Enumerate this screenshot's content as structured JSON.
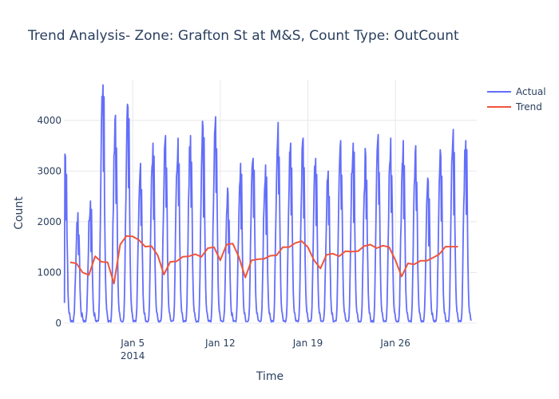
{
  "chart_data": {
    "type": "line",
    "title": "Trend Analysis- Zone: Grafton St at M&S, Count Type: OutCount",
    "xlabel": "Time",
    "ylabel": "Count",
    "x_range": [
      "2013-12-30T12:00",
      "2014-02-01T12:00"
    ],
    "ylim": [
      0,
      4800
    ],
    "y_ticks": [
      {
        "value": 0,
        "label": "0"
      },
      {
        "value": 1000,
        "label": "1000"
      },
      {
        "value": 2000,
        "label": "2000"
      },
      {
        "value": 3000,
        "label": "3000"
      },
      {
        "value": 4000,
        "label": "4000"
      }
    ],
    "x_ticks": [
      {
        "date": "2014-01-05",
        "label": "Jan 5",
        "sublabel": "2014"
      },
      {
        "date": "2014-01-12",
        "label": "Jan 12",
        "sublabel": ""
      },
      {
        "date": "2014-01-19",
        "label": "Jan 19",
        "sublabel": ""
      },
      {
        "date": "2014-01-26",
        "label": "Jan 26",
        "sublabel": ""
      }
    ],
    "grid": true,
    "legend_position": "top-right",
    "daily_peak_values": [
      3280,
      2180,
      2410,
      4700,
      4100,
      4250,
      3150,
      3550,
      3700,
      3650,
      3700,
      3850,
      4070,
      2550,
      3150,
      3250,
      3120,
      3960,
      3550,
      3650,
      3250,
      3000,
      3600,
      3550,
      3300,
      3720,
      3650,
      3600,
      3500,
      2800,
      3300,
      3820,
      3600
    ],
    "series": [
      {
        "name": "Actual",
        "color": "#636efa",
        "daily_profile": "hourly counts, peaks in the afternoon and near 0 overnight"
      },
      {
        "name": "Trend",
        "color": "#ef553b",
        "points": [
          [
            "2013-12-31T00:00",
            1200
          ],
          [
            "2013-12-31T12:00",
            1180
          ],
          [
            "2014-01-01T00:00",
            1000
          ],
          [
            "2014-01-01T12:00",
            950
          ],
          [
            "2014-01-02T00:00",
            1320
          ],
          [
            "2014-01-02T12:00",
            1210
          ],
          [
            "2014-01-03T00:00",
            1200
          ],
          [
            "2014-01-03T12:00",
            780
          ],
          [
            "2014-01-04T00:00",
            1550
          ],
          [
            "2014-01-04T12:00",
            1720
          ],
          [
            "2014-01-05T00:00",
            1710
          ],
          [
            "2014-01-05T12:00",
            1640
          ],
          [
            "2014-01-06T00:00",
            1510
          ],
          [
            "2014-01-06T12:00",
            1520
          ],
          [
            "2014-01-07T00:00",
            1340
          ],
          [
            "2014-01-07T12:00",
            960
          ],
          [
            "2014-01-08T00:00",
            1210
          ],
          [
            "2014-01-08T12:00",
            1220
          ],
          [
            "2014-01-09T00:00",
            1310
          ],
          [
            "2014-01-09T12:00",
            1320
          ],
          [
            "2014-01-10T00:00",
            1360
          ],
          [
            "2014-01-10T12:00",
            1310
          ],
          [
            "2014-01-11T00:00",
            1480
          ],
          [
            "2014-01-11T12:00",
            1500
          ],
          [
            "2014-01-12T00:00",
            1240
          ],
          [
            "2014-01-12T12:00",
            1550
          ],
          [
            "2014-01-13T00:00",
            1570
          ],
          [
            "2014-01-13T12:00",
            1300
          ],
          [
            "2014-01-14T00:00",
            900
          ],
          [
            "2014-01-14T12:00",
            1240
          ],
          [
            "2014-01-15T00:00",
            1260
          ],
          [
            "2014-01-15T12:00",
            1270
          ],
          [
            "2014-01-16T00:00",
            1330
          ],
          [
            "2014-01-16T12:00",
            1340
          ],
          [
            "2014-01-17T00:00",
            1500
          ],
          [
            "2014-01-17T12:00",
            1500
          ],
          [
            "2014-01-18T00:00",
            1580
          ],
          [
            "2014-01-18T12:00",
            1620
          ],
          [
            "2014-01-19T00:00",
            1500
          ],
          [
            "2014-01-19T12:00",
            1240
          ],
          [
            "2014-01-20T00:00",
            1080
          ],
          [
            "2014-01-20T12:00",
            1350
          ],
          [
            "2014-01-21T00:00",
            1370
          ],
          [
            "2014-01-21T12:00",
            1320
          ],
          [
            "2014-01-22T00:00",
            1420
          ],
          [
            "2014-01-22T12:00",
            1410
          ],
          [
            "2014-01-23T00:00",
            1420
          ],
          [
            "2014-01-23T12:00",
            1520
          ],
          [
            "2014-01-24T00:00",
            1550
          ],
          [
            "2014-01-24T12:00",
            1480
          ],
          [
            "2014-01-25T00:00",
            1530
          ],
          [
            "2014-01-25T12:00",
            1500
          ],
          [
            "2014-01-26T00:00",
            1240
          ],
          [
            "2014-01-26T12:00",
            920
          ],
          [
            "2014-01-27T00:00",
            1180
          ],
          [
            "2014-01-27T12:00",
            1160
          ],
          [
            "2014-01-28T00:00",
            1230
          ],
          [
            "2014-01-28T12:00",
            1230
          ],
          [
            "2014-01-29T00:00",
            1290
          ],
          [
            "2014-01-29T12:00",
            1360
          ],
          [
            "2014-01-30T00:00",
            1510
          ],
          [
            "2014-01-30T12:00",
            1510
          ],
          [
            "2014-01-31T00:00",
            1510
          ]
        ]
      }
    ]
  }
}
